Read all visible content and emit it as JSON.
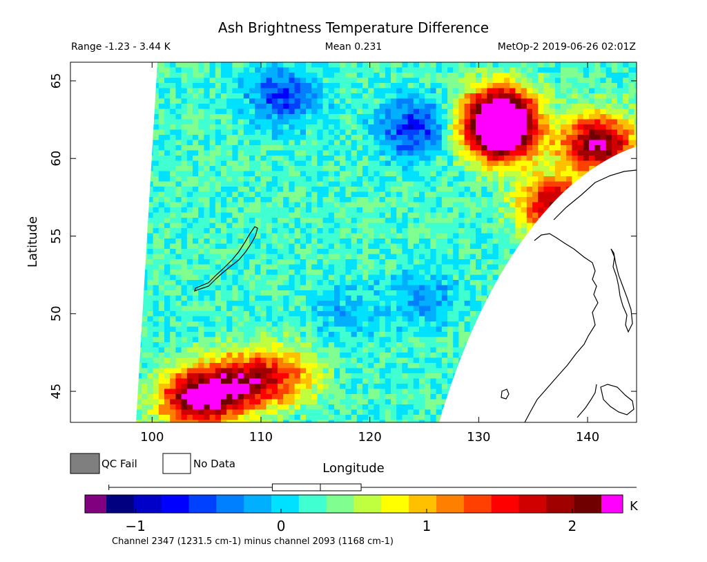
{
  "title": "Ash Brightness Temperature Difference",
  "range_text": "Range -1.23 - 3.44 K",
  "mean_text": "Mean 0.231",
  "satellite_text": "MetOp-2 2019-06-26 02:01Z",
  "legend": {
    "qc_fail": "QC Fail",
    "no_data": "No Data"
  },
  "colorbar": {
    "unit": "K",
    "caption": "Channel 2347 (1231.5 cm-1) minus channel 2093 (1168 cm-1)",
    "min": -1.23,
    "max": 3.44,
    "ticks": [
      {
        "value": -1,
        "label": "−1"
      },
      {
        "value": 0,
        "label": "0"
      },
      {
        "value": 1,
        "label": "1"
      },
      {
        "value": 2,
        "label": "2"
      }
    ],
    "colors": [
      "#000080",
      "#0000c8",
      "#0000ff",
      "#0040ff",
      "#0080ff",
      "#00b0ff",
      "#00e0ff",
      "#40ffd0",
      "#80ff90",
      "#c0ff40",
      "#ffff00",
      "#ffc000",
      "#ff8000",
      "#ff4000",
      "#ff0000",
      "#d00000",
      "#a00000",
      "#700000"
    ],
    "under_color": "#800080",
    "over_color": "#ff00ff",
    "qc_fail_color": "#7f7f7f"
  },
  "chart_data": {
    "type": "heatmap",
    "title": "Ash Brightness Temperature Difference",
    "xlabel": "Longitude",
    "ylabel": "Latitude",
    "xlim": [
      92.5,
      144.5
    ],
    "ylim": [
      43,
      66.2
    ],
    "x_ticks": [
      100,
      110,
      120,
      130,
      140
    ],
    "y_ticks": [
      45,
      50,
      55,
      60,
      65
    ],
    "value_range": [
      -1.23,
      3.44
    ],
    "mean": 0.231,
    "units": "K",
    "features": [
      {
        "lon": 104,
        "lat": 44.5,
        "value": 2.3
      },
      {
        "lon": 108,
        "lat": 45.5,
        "value": 1.8
      },
      {
        "lon": 112,
        "lat": 46,
        "value": 1.2
      },
      {
        "lon": 132,
        "lat": 63,
        "value": 2.1
      },
      {
        "lon": 132,
        "lat": 61.5,
        "value": 2.5
      },
      {
        "lon": 141,
        "lat": 61,
        "value": 2.3
      },
      {
        "lon": 137,
        "lat": 57,
        "value": 1.9
      },
      {
        "lon": 112,
        "lat": 64,
        "value": -0.6
      },
      {
        "lon": 124,
        "lat": 62,
        "value": -0.7
      },
      {
        "lon": 118,
        "lat": 50,
        "value": -0.1
      },
      {
        "lon": 125,
        "lat": 51,
        "value": -0.2
      }
    ]
  }
}
